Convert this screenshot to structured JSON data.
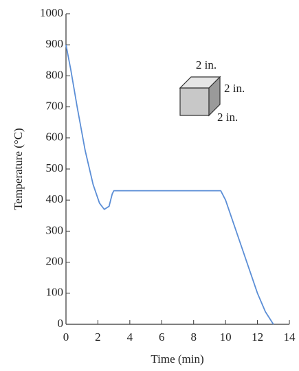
{
  "chart_data": {
    "type": "line",
    "x_label": "Time (min)",
    "y_label": "Temperature (°C)",
    "xlim": [
      0,
      14
    ],
    "xticks": [
      0,
      2,
      4,
      6,
      8,
      10,
      12,
      14
    ],
    "ylim": [
      0,
      1000
    ],
    "yticks": [
      0,
      100,
      200,
      300,
      400,
      500,
      600,
      700,
      800,
      900,
      1000
    ],
    "annotations": [
      "2 in.",
      "2 in.",
      "2 in."
    ],
    "series": [
      {
        "color": "#5b8ed6",
        "x": [
          0,
          0.3,
          0.7,
          1.2,
          1.7,
          2.1,
          2.4,
          2.7,
          2.9,
          3.0,
          9.7,
          10,
          11,
          12,
          12.5,
          13
        ],
        "values": [
          900,
          820,
          700,
          560,
          450,
          390,
          370,
          380,
          420,
          430,
          430,
          400,
          250,
          100,
          40,
          0
        ]
      }
    ]
  }
}
